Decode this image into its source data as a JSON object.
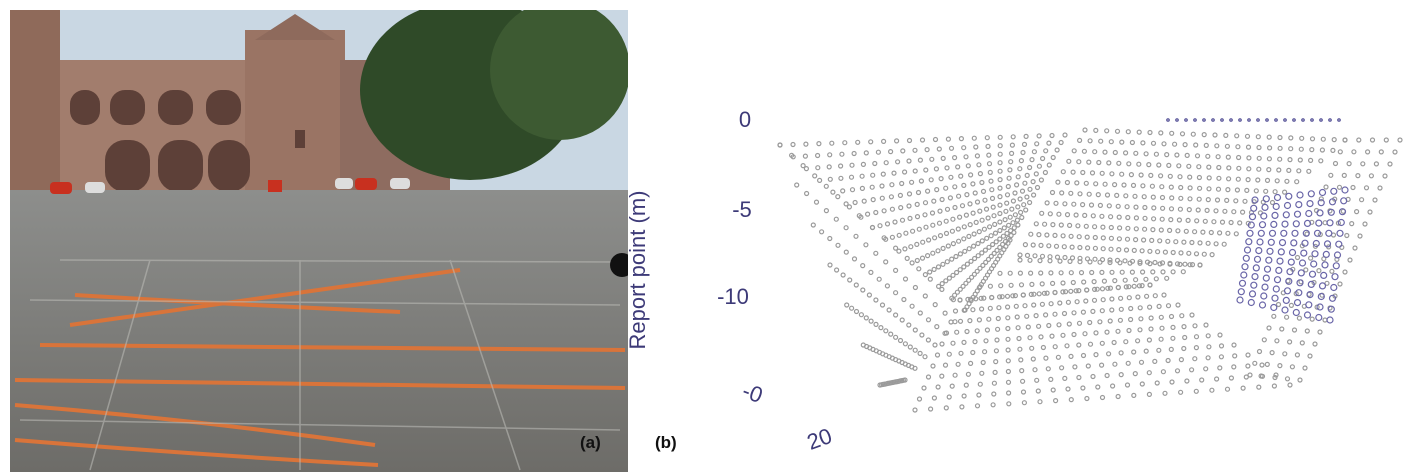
{
  "panels": [
    {
      "label": "(a)"
    },
    {
      "label": "(b)",
      "axis_label": "Report point (m)",
      "tick_labels": [
        "0",
        "-5",
        "-10",
        "-0",
        "20"
      ]
    }
  ]
}
